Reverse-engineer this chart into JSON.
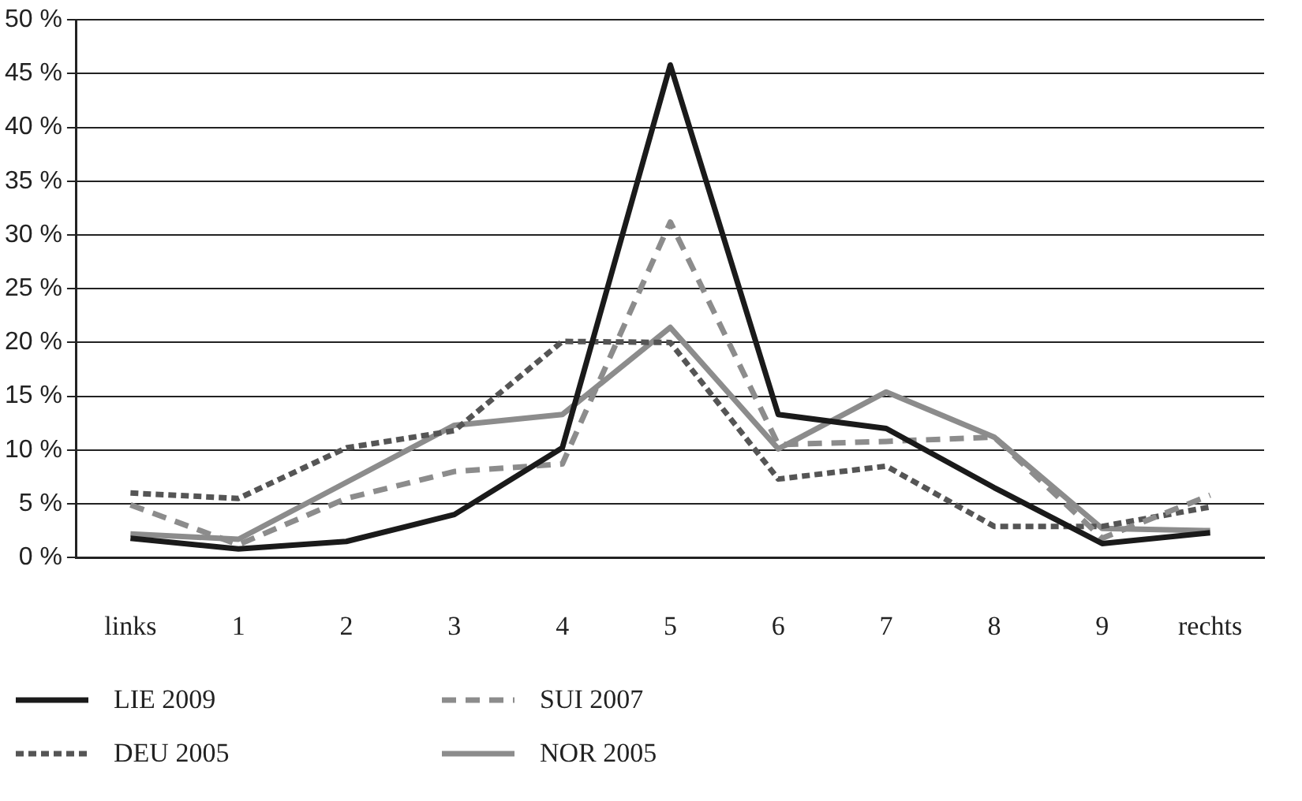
{
  "chart_data": {
    "type": "line",
    "categories": [
      "links",
      "1",
      "2",
      "3",
      "4",
      "5",
      "6",
      "7",
      "8",
      "9",
      "rechts"
    ],
    "series": [
      {
        "name": "LIE 2009",
        "color": "#1a1a1a",
        "line_style": "solid",
        "values": [
          1.8,
          0.8,
          1.5,
          4,
          10.2,
          45.8,
          13.3,
          12,
          6.5,
          1.3,
          2.3
        ]
      },
      {
        "name": "SUI 2007",
        "color": "#8c8c8c",
        "line_style": "dashed",
        "values": [
          4.9,
          1.2,
          5.5,
          8,
          8.7,
          31.2,
          10.5,
          10.8,
          11.2,
          1.8,
          5.8
        ]
      },
      {
        "name": "DEU 2005",
        "color": "#555555",
        "line_style": "dotted",
        "values": [
          6,
          5.5,
          10.2,
          11.8,
          20.1,
          20,
          7.3,
          8.5,
          2.9,
          2.9,
          4.7
        ]
      },
      {
        "name": "NOR 2005",
        "color": "#8c8c8c",
        "line_style": "solid",
        "values": [
          2.2,
          1.7,
          7,
          12.3,
          13.3,
          21.4,
          10.1,
          15.4,
          11.2,
          2.7,
          2.5
        ]
      }
    ],
    "ylim": [
      0,
      50
    ],
    "yticks": [
      {
        "value": 0,
        "label": "0 %"
      },
      {
        "value": 5,
        "label": "5 %"
      },
      {
        "value": 10,
        "label": "10 %"
      },
      {
        "value": 15,
        "label": "15 %"
      },
      {
        "value": 20,
        "label": "20 %"
      },
      {
        "value": 25,
        "label": "25 %"
      },
      {
        "value": 30,
        "label": "30 %"
      },
      {
        "value": 35,
        "label": "35 %"
      },
      {
        "value": 40,
        "label": "40 %"
      },
      {
        "value": 45,
        "label": "45 %"
      },
      {
        "value": 50,
        "label": "50 %"
      }
    ],
    "grid": "y",
    "legend": "bottom",
    "marker": "none"
  }
}
